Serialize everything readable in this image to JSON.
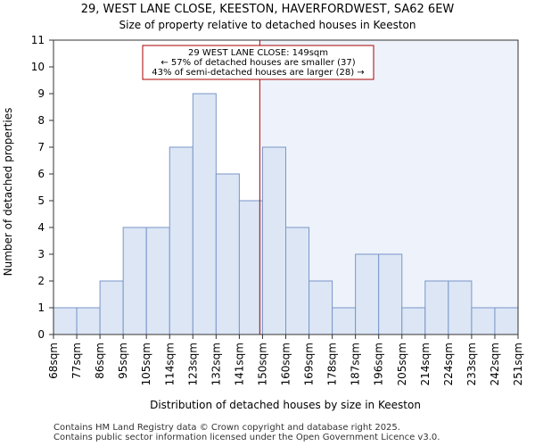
{
  "chart_data": {
    "type": "bar",
    "title": "29, WEST LANE CLOSE, KEESTON, HAVERFORDWEST, SA62 6EW",
    "subtitle": "Size of property relative to detached houses in Keeston",
    "xlabel": "Distribution of detached houses by size in Keeston",
    "ylabel": "Number of detached properties",
    "ylim": [
      0,
      11
    ],
    "yticks": [
      "0",
      "1",
      "2",
      "3",
      "4",
      "5",
      "6",
      "7",
      "8",
      "9",
      "10",
      "11"
    ],
    "bin_labels": [
      "68sqm",
      "77sqm",
      "86sqm",
      "95sqm",
      "105sqm",
      "114sqm",
      "123sqm",
      "132sqm",
      "141sqm",
      "150sqm",
      "160sqm",
      "169sqm",
      "178sqm",
      "187sqm",
      "196sqm",
      "205sqm",
      "214sqm",
      "224sqm",
      "233sqm",
      "242sqm",
      "251sqm"
    ],
    "values": [
      1,
      1,
      2,
      4,
      4,
      7,
      9,
      6,
      5,
      7,
      4,
      2,
      1,
      3,
      3,
      1,
      2,
      2,
      1,
      1
    ],
    "marker_value": 149,
    "marker_bin_position": 8.88,
    "annotation": {
      "line1": "29 WEST LANE CLOSE: 149sqm",
      "line2": "← 57% of detached houses are smaller (37)",
      "line3": "43% of semi-detached houses are larger (28) →"
    },
    "colors": {
      "bar_fill": "#dce6f5",
      "bar_edge": "#7a96c8",
      "marker": "#aa0000",
      "shade": "#eef3fb"
    }
  },
  "footer": {
    "line1": "Contains HM Land Registry data © Crown copyright and database right 2025.",
    "line2": "Contains public sector information licensed under the Open Government Licence v3.0."
  }
}
